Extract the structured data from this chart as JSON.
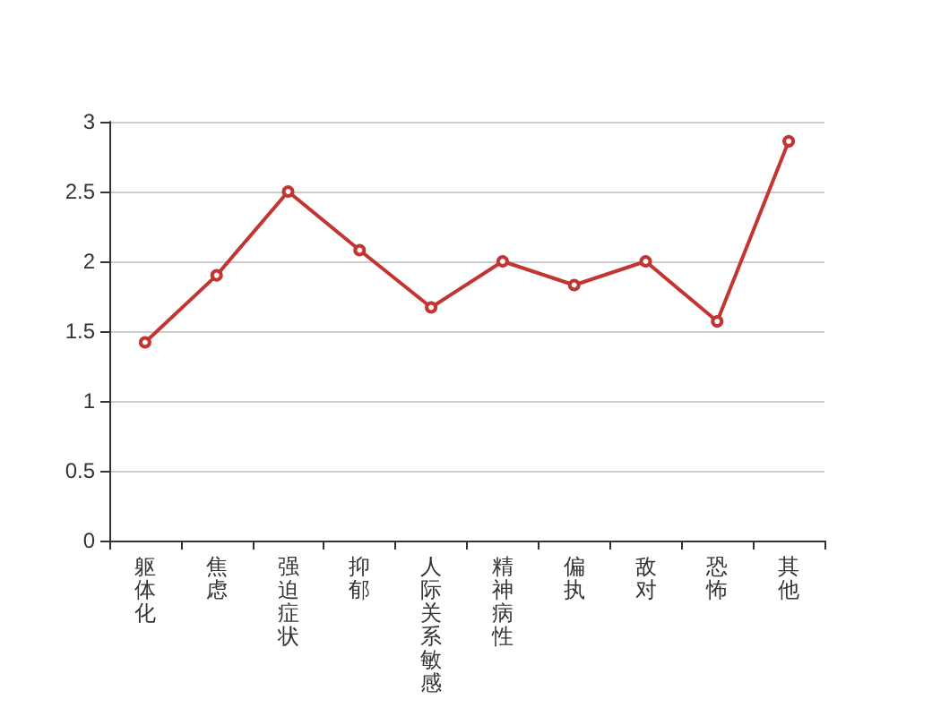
{
  "chart_data": {
    "type": "line",
    "categories": [
      "躯体化",
      "焦虑",
      "强迫症状",
      "抑郁",
      "人际关系敏感",
      "精神病性",
      "偏执",
      "敌对",
      "恐怖",
      "其他"
    ],
    "series": [
      {
        "color": "#c23531",
        "values": [
          1.42,
          1.9,
          2.5,
          2.08,
          1.67,
          2.0,
          1.83,
          2.0,
          1.57,
          2.86
        ]
      }
    ],
    "ylim": [
      0,
      3
    ],
    "yticks": [
      0,
      0.5,
      1,
      1.5,
      2,
      2.5,
      3
    ],
    "grid": "y",
    "marker": "circle",
    "line_style": "solid"
  }
}
